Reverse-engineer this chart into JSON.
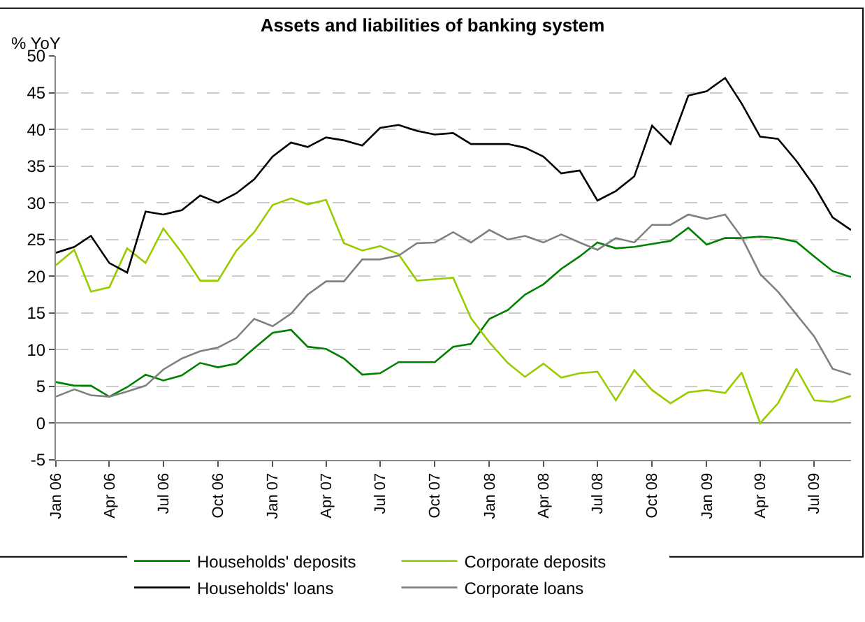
{
  "chart_data": {
    "type": "line",
    "title": "Assets and liabilities of banking system",
    "ylabel": "% YoY",
    "x": [
      "2006-01",
      "2006-02",
      "2006-03",
      "2006-04",
      "2006-05",
      "2006-06",
      "2006-07",
      "2006-08",
      "2006-09",
      "2006-10",
      "2006-11",
      "2006-12",
      "2007-01",
      "2007-02",
      "2007-03",
      "2007-04",
      "2007-05",
      "2007-06",
      "2007-07",
      "2007-08",
      "2007-09",
      "2007-10",
      "2007-11",
      "2007-12",
      "2008-01",
      "2008-02",
      "2008-03",
      "2008-04",
      "2008-05",
      "2008-06",
      "2008-07",
      "2008-08",
      "2008-09",
      "2008-10",
      "2008-11",
      "2008-12",
      "2009-01",
      "2009-02",
      "2009-03",
      "2009-04",
      "2009-05",
      "2009-06",
      "2009-07",
      "2009-08",
      "2009-09"
    ],
    "series": [
      {
        "name": "Households' deposits",
        "color": "#008000",
        "values": [
          5.6,
          5.1,
          5.1,
          3.6,
          4.9,
          6.6,
          5.8,
          6.5,
          8.2,
          7.6,
          8.1,
          10.2,
          12.3,
          12.7,
          10.4,
          10.1,
          8.8,
          6.6,
          6.8,
          8.3,
          8.3,
          8.3,
          10.4,
          10.8,
          14.2,
          15.4,
          17.5,
          18.9,
          21,
          22.7,
          24.6,
          23.8,
          24,
          24.4,
          24.8,
          26.6,
          24.3,
          25.2,
          25.2,
          25.4,
          25.2,
          24.7,
          22.7,
          20.7,
          19.9
        ]
      },
      {
        "name": "Corporate deposits",
        "color": "#99cc00",
        "values": [
          21.5,
          23.6,
          17.9,
          18.5,
          23.8,
          21.8,
          26.5,
          23.2,
          19.4,
          19.4,
          23.5,
          26,
          29.7,
          30.6,
          29.8,
          30.4,
          24.5,
          23.5,
          24.1,
          23,
          19.4,
          19.6,
          19.8,
          14.3,
          11,
          8.2,
          6.3,
          8.1,
          6.2,
          6.8,
          7,
          3.1,
          7.2,
          4.5,
          2.7,
          4.2,
          4.5,
          4.1,
          6.9,
          0,
          2.7,
          7.4,
          3.1,
          2.9,
          3.7
        ]
      },
      {
        "name": "Households' loans",
        "color": "#000000",
        "values": [
          23.2,
          24,
          25.5,
          21.8,
          20.5,
          28.8,
          28.4,
          29,
          31,
          30,
          31.3,
          33.2,
          36.3,
          38.2,
          37.6,
          38.9,
          38.5,
          37.8,
          40.2,
          40.6,
          39.8,
          39.3,
          39.5,
          38,
          38,
          38,
          37.5,
          36.3,
          34,
          34.4,
          30.3,
          31.6,
          33.6,
          40.5,
          38,
          44.6,
          45.2,
          47,
          43.5,
          39,
          38.7,
          35.7,
          32.3,
          28,
          26.3
        ]
      },
      {
        "name": "Corporate loans",
        "color": "#808080",
        "values": [
          3.6,
          4.6,
          3.8,
          3.6,
          4.3,
          5.1,
          7.3,
          8.8,
          9.8,
          10.3,
          11.6,
          14.2,
          13.2,
          14.9,
          17.5,
          19.3,
          19.3,
          22.3,
          22.3,
          22.8,
          24.5,
          24.6,
          26,
          24.6,
          26.3,
          25,
          25.5,
          24.6,
          25.7,
          24.6,
          23.6,
          25.2,
          24.6,
          27,
          27,
          28.4,
          27.8,
          28.4,
          25.3,
          20.3,
          17.9,
          14.8,
          11.8,
          7.4,
          6.6
        ]
      }
    ],
    "xlim": [
      "2006-01",
      "2009-09"
    ],
    "xticks": [
      {
        "value": "2006-01",
        "label": "Jan 06"
      },
      {
        "value": "2006-04",
        "label": "Apr 06"
      },
      {
        "value": "2006-07",
        "label": "Jul 06"
      },
      {
        "value": "2006-10",
        "label": "Oct 06"
      },
      {
        "value": "2007-01",
        "label": "Jan 07"
      },
      {
        "value": "2007-04",
        "label": "Apr 07"
      },
      {
        "value": "2007-07",
        "label": "Jul 07"
      },
      {
        "value": "2007-10",
        "label": "Oct 07"
      },
      {
        "value": "2008-01",
        "label": "Jan 08"
      },
      {
        "value": "2008-04",
        "label": "Apr 08"
      },
      {
        "value": "2008-07",
        "label": "Jul 08"
      },
      {
        "value": "2008-10",
        "label": "Oct 08"
      },
      {
        "value": "2009-01",
        "label": "Jan 09"
      },
      {
        "value": "2009-04",
        "label": "Apr 09"
      },
      {
        "value": "2009-07",
        "label": "Jul 09"
      }
    ],
    "ylim": [
      -5,
      50
    ],
    "yticks": [
      -5,
      0,
      5,
      10,
      15,
      20,
      25,
      30,
      35,
      40,
      45,
      50
    ],
    "grid": "y",
    "legend": "bottom",
    "marker": "none",
    "line_style": "solid"
  }
}
